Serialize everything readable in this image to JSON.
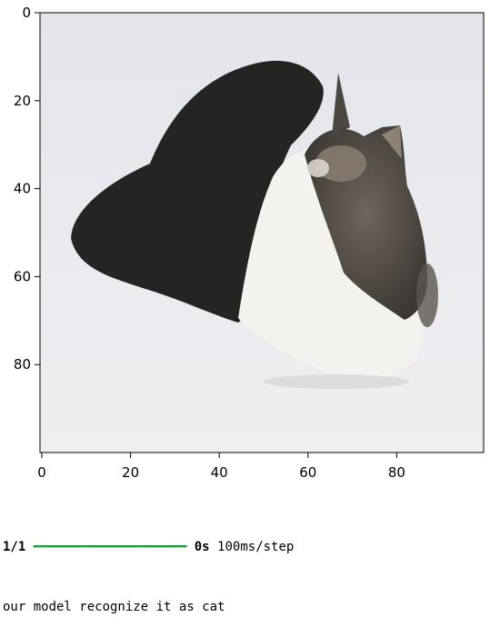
{
  "plot": {
    "image_subject": "cat lying on a white surface, grey-white fur with a black patch",
    "x_ticks": [
      "0",
      "20",
      "40",
      "60",
      "80"
    ],
    "y_ticks": [
      "0",
      "20",
      "40",
      "60",
      "80"
    ],
    "x_range": [
      0,
      100
    ],
    "y_range": [
      0,
      100
    ]
  },
  "progress": {
    "step_text": "1/1",
    "bar_text": "━━━━━━━━━━━━━━━━━━━━",
    "bar_fill": 1.0,
    "time_text": "0s",
    "per_step_text": "100ms/step"
  },
  "result": {
    "message": "our model recognize it as cat"
  },
  "colors": {
    "progress_bar": "#1a9f3c",
    "background_light": "#e9ebee"
  }
}
